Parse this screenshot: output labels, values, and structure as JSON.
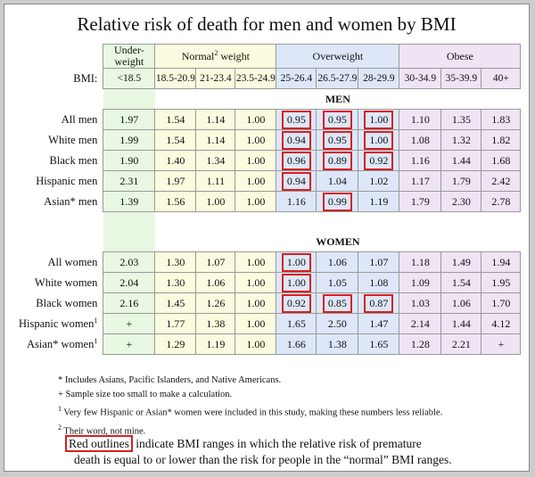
{
  "title": "Relative risk of death for men and women by BMI",
  "groups": [
    {
      "label": "Under-weight",
      "color": "#e8f8e2"
    },
    {
      "label": "Normal",
      "sup": "2",
      "label_tail": " weight",
      "color": "#fbfbdf"
    },
    {
      "label": "Overweight",
      "color": "#dde7f9"
    },
    {
      "label": "Obese",
      "color": "#efe4f4"
    }
  ],
  "bmi_label": "BMI:",
  "bmi_ranges": [
    "<18.5",
    "18.5-20.9",
    "21-23.4",
    "23.5-24.9",
    "25-26.4",
    "26.5-27.9",
    "28-29.9",
    "30-34.9",
    "35-39.9",
    "40+"
  ],
  "sections": {
    "men": "MEN",
    "women": "WOMEN"
  },
  "men_rows": [
    {
      "label": "All men",
      "values": [
        "1.97",
        "1.54",
        "1.14",
        "1.00",
        "0.95",
        "0.95",
        "1.00",
        "1.10",
        "1.35",
        "1.83"
      ],
      "red": [
        4,
        5,
        6
      ]
    },
    {
      "label": "White men",
      "values": [
        "1.99",
        "1.54",
        "1.14",
        "1.00",
        "0.94",
        "0.95",
        "1.00",
        "1.08",
        "1.32",
        "1.82"
      ],
      "red": [
        4,
        5,
        6
      ]
    },
    {
      "label": "Black men",
      "values": [
        "1.90",
        "1.40",
        "1.34",
        "1.00",
        "0.96",
        "0.89",
        "0.92",
        "1.16",
        "1.44",
        "1.68"
      ],
      "red": [
        4,
        5,
        6
      ]
    },
    {
      "label": "Hispanic men",
      "values": [
        "2.31",
        "1.97",
        "1.11",
        "1.00",
        "0.94",
        "1.04",
        "1.02",
        "1.17",
        "1.79",
        "2.42"
      ],
      "red": [
        4
      ]
    },
    {
      "label": "Asian* men",
      "values": [
        "1.39",
        "1.56",
        "1.00",
        "1.00",
        "1.16",
        "0.99",
        "1.19",
        "1.79",
        "2.30",
        "2.78"
      ],
      "red": [
        5
      ]
    }
  ],
  "women_rows": [
    {
      "label": "All women",
      "values": [
        "2.03",
        "1.30",
        "1.07",
        "1.00",
        "1.00",
        "1.06",
        "1.07",
        "1.18",
        "1.49",
        "1.94"
      ],
      "red": [
        4
      ]
    },
    {
      "label": "White women",
      "values": [
        "2.04",
        "1.30",
        "1.06",
        "1.00",
        "1.00",
        "1.05",
        "1.08",
        "1.09",
        "1.54",
        "1.95"
      ],
      "red": [
        4
      ]
    },
    {
      "label": "Black women",
      "values": [
        "2.16",
        "1.45",
        "1.26",
        "1.00",
        "0.92",
        "0.85",
        "0.87",
        "1.03",
        "1.06",
        "1.70"
      ],
      "red": [
        4,
        5,
        6
      ]
    },
    {
      "label": "Hispanic women",
      "sup": "1",
      "values": [
        "+",
        "1.77",
        "1.38",
        "1.00",
        "1.65",
        "2.50",
        "1.47",
        "2.14",
        "1.44",
        "4.12"
      ],
      "red": []
    },
    {
      "label": "Asian* women",
      "sup": "1",
      "values": [
        "+",
        "1.29",
        "1.19",
        "1.00",
        "1.66",
        "1.38",
        "1.65",
        "1.28",
        "2.21",
        "+"
      ],
      "red": []
    }
  ],
  "notes": [
    {
      "text": "* Includes Asians, Pacific Islanders, and Native Americans."
    },
    {
      "text": "+ Sample size too small to make a calculation."
    },
    {
      "sup": "1",
      "text": " Very few Hispanic or Asian* women were included in this study, making these numbers less reliable."
    },
    {
      "sup": "2",
      "text": " Their word, not mine."
    }
  ],
  "legend": {
    "box_text": "Red outlines",
    "line1": " indicate BMI ranges in which the relative risk of premature",
    "line2": "death is equal to or lower than the risk for people in the “normal” BMI ranges."
  },
  "colors": {
    "red_outline": "#d62020",
    "underweight": "#e8f8e2",
    "normal": "#fbfbdf",
    "overweight": "#dde7f9",
    "obese": "#efe4f4"
  }
}
